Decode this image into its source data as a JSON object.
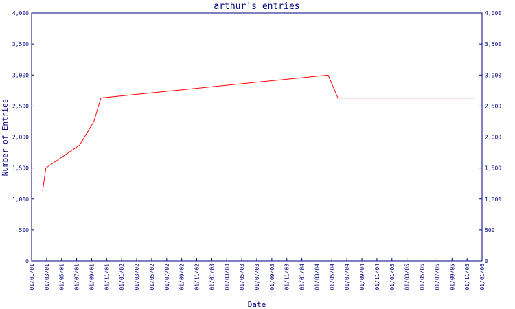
{
  "chart_data": {
    "type": "line",
    "title": "arthur's entries",
    "xlabel": "Date",
    "ylabel": "Number of Entries",
    "x": [
      "15/02/01",
      "28/02/01",
      "13/07/01",
      "10/09/01",
      "08/10/01",
      "16/04/04",
      "25/05/04",
      "04/12/05"
    ],
    "series": [
      {
        "name": "entries",
        "color": "#ff0000",
        "values": [
          1130,
          1500,
          1870,
          2250,
          2630,
          3000,
          2630,
          2630
        ]
      }
    ],
    "xlim": [
      "01/01/01",
      "01/01/06"
    ],
    "xticks": [
      "01/01/01",
      "01/03/01",
      "01/05/01",
      "01/07/01",
      "01/09/01",
      "01/11/01",
      "01/01/02",
      "01/03/02",
      "01/05/02",
      "01/07/02",
      "01/09/02",
      "01/11/02",
      "01/01/03",
      "01/03/03",
      "01/05/03",
      "01/07/03",
      "01/09/03",
      "01/11/03",
      "01/01/04",
      "01/03/04",
      "01/05/04",
      "01/07/04",
      "01/09/04",
      "01/11/04",
      "01/01/05",
      "01/03/05",
      "01/05/05",
      "01/07/05",
      "01/09/05",
      "01/11/05",
      "01/01/06"
    ],
    "ylim": [
      0,
      4000
    ],
    "yticks": [
      0,
      500,
      {
        "value": 1000,
        "label": "1,000"
      },
      {
        "value": 1500,
        "label": "1,500"
      },
      {
        "value": 2000,
        "label": "2,000"
      },
      {
        "value": 2500,
        "label": "2,500"
      },
      {
        "value": 3000,
        "label": "3,000"
      },
      {
        "value": 3500,
        "label": "3,500"
      },
      {
        "value": 4000,
        "label": "4,000"
      }
    ],
    "y2lim": [
      0,
      4000
    ],
    "y2ticks": [
      0,
      500,
      {
        "value": 1000,
        "label": "1,000"
      },
      {
        "value": 1500,
        "label": "1,500"
      },
      {
        "value": 2000,
        "label": "2,000"
      },
      {
        "value": 2500,
        "label": "2,500"
      },
      {
        "value": 3000,
        "label": "3,000"
      },
      {
        "value": 3500,
        "label": "3,500"
      },
      {
        "value": 4000,
        "label": "4,000"
      }
    ]
  }
}
